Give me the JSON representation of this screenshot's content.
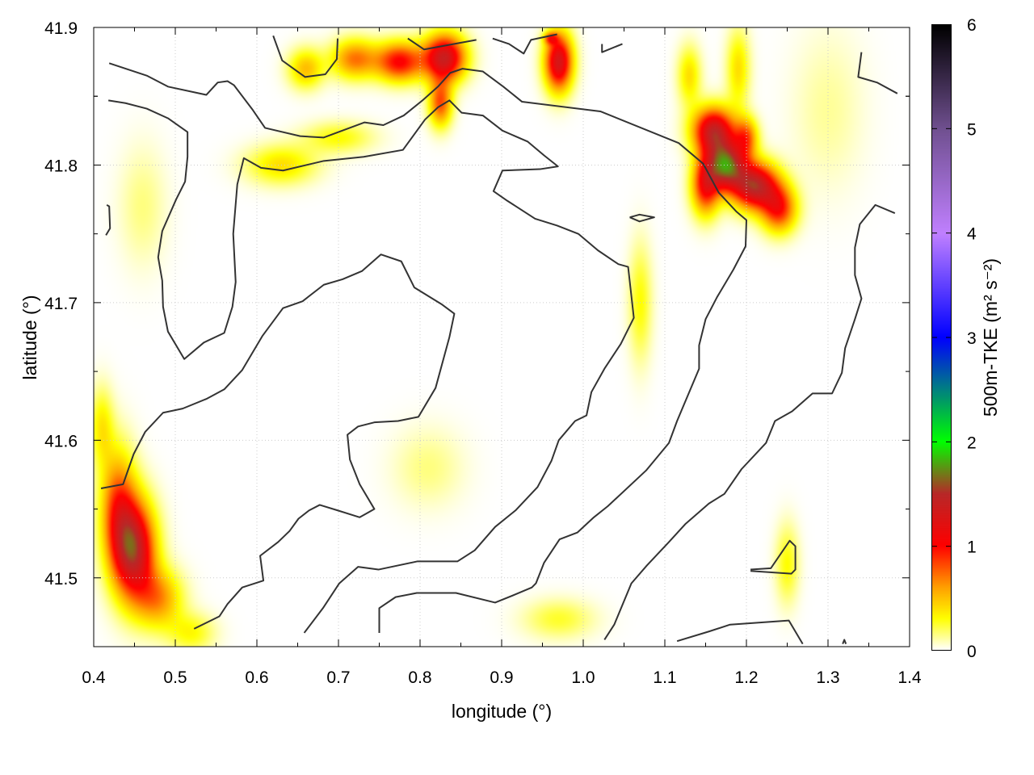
{
  "chart_data": {
    "type": "heatmap",
    "title": "",
    "xlabel": "longitude (°)",
    "ylabel": "latitude (°)",
    "xlim": [
      0.4,
      1.4
    ],
    "ylim": [
      41.45,
      41.9
    ],
    "xticks": [
      "0.4",
      "0.5",
      "0.6",
      "0.7",
      "0.8",
      "0.9",
      "1.0",
      "1.1",
      "1.2",
      "1.3",
      "1.4"
    ],
    "yticks": [
      "41.5",
      "41.6",
      "41.7",
      "41.8",
      "41.9"
    ],
    "grid": true,
    "colorbar": {
      "label": "500m-TKE (m² s⁻²)",
      "range": [
        0,
        6
      ],
      "ticks": [
        "0",
        "1",
        "2",
        "3",
        "4",
        "5",
        "6"
      ],
      "stops": [
        {
          "v": 0,
          "c": "#ffffff"
        },
        {
          "v": 0.3,
          "c": "#ffff00"
        },
        {
          "v": 0.6,
          "c": "#ffa000"
        },
        {
          "v": 1.0,
          "c": "#ff0000"
        },
        {
          "v": 1.5,
          "c": "#b82828"
        },
        {
          "v": 2.0,
          "c": "#00ff00"
        },
        {
          "v": 2.5,
          "c": "#008080"
        },
        {
          "v": 3.0,
          "c": "#0000ff"
        },
        {
          "v": 4.0,
          "c": "#c080ff"
        },
        {
          "v": 5.0,
          "c": "#705090"
        },
        {
          "v": 6.0,
          "c": "#000000"
        }
      ]
    },
    "tke_hotspots": [
      {
        "lon": 0.45,
        "lat": 41.52,
        "tke": 1.4,
        "slon": 0.018,
        "slat": 0.025
      },
      {
        "lon": 0.43,
        "lat": 41.55,
        "tke": 0.8,
        "slon": 0.015,
        "slat": 0.03
      },
      {
        "lon": 0.48,
        "lat": 41.485,
        "tke": 0.6,
        "slon": 0.02,
        "slat": 0.015
      },
      {
        "lon": 0.52,
        "lat": 41.46,
        "tke": 0.3,
        "slon": 0.02,
        "slat": 0.01
      },
      {
        "lon": 0.41,
        "lat": 41.61,
        "tke": 0.35,
        "slon": 0.01,
        "slat": 0.02
      },
      {
        "lon": 0.83,
        "lat": 41.878,
        "tke": 1.35,
        "slon": 0.018,
        "slat": 0.012
      },
      {
        "lon": 0.775,
        "lat": 41.875,
        "tke": 1.0,
        "slon": 0.02,
        "slat": 0.01
      },
      {
        "lon": 0.72,
        "lat": 41.877,
        "tke": 0.7,
        "slon": 0.02,
        "slat": 0.01
      },
      {
        "lon": 0.66,
        "lat": 41.87,
        "tke": 0.5,
        "slon": 0.015,
        "slat": 0.01
      },
      {
        "lon": 0.825,
        "lat": 41.845,
        "tke": 0.8,
        "slon": 0.01,
        "slat": 0.012
      },
      {
        "lon": 0.97,
        "lat": 41.875,
        "tke": 1.3,
        "slon": 0.012,
        "slat": 0.015
      },
      {
        "lon": 0.96,
        "lat": 41.892,
        "tke": 0.6,
        "slon": 0.006,
        "slat": 0.003
      },
      {
        "lon": 1.16,
        "lat": 41.825,
        "tke": 1.35,
        "slon": 0.018,
        "slat": 0.012
      },
      {
        "lon": 1.175,
        "lat": 41.8,
        "tke": 1.5,
        "slon": 0.016,
        "slat": 0.012
      },
      {
        "lon": 1.21,
        "lat": 41.785,
        "tke": 1.45,
        "slon": 0.02,
        "slat": 0.012
      },
      {
        "lon": 1.24,
        "lat": 41.768,
        "tke": 0.9,
        "slon": 0.015,
        "slat": 0.012
      },
      {
        "lon": 1.15,
        "lat": 41.785,
        "tke": 1.0,
        "slon": 0.012,
        "slat": 0.015
      },
      {
        "lon": 1.2,
        "lat": 41.82,
        "tke": 0.7,
        "slon": 0.01,
        "slat": 0.01
      },
      {
        "lon": 1.13,
        "lat": 41.865,
        "tke": 0.4,
        "slon": 0.01,
        "slat": 0.015
      },
      {
        "lon": 1.19,
        "lat": 41.87,
        "tke": 0.4,
        "slon": 0.01,
        "slat": 0.02
      },
      {
        "lon": 0.63,
        "lat": 41.8,
        "tke": 0.4,
        "slon": 0.03,
        "slat": 0.01
      },
      {
        "lon": 0.7,
        "lat": 41.82,
        "tke": 0.3,
        "slon": 0.03,
        "slat": 0.008
      },
      {
        "lon": 1.07,
        "lat": 41.7,
        "tke": 0.3,
        "slon": 0.01,
        "slat": 0.03
      },
      {
        "lon": 0.97,
        "lat": 41.47,
        "tke": 0.25,
        "slon": 0.03,
        "slat": 0.01
      },
      {
        "lon": 0.81,
        "lat": 41.58,
        "tke": 0.15,
        "slon": 0.03,
        "slat": 0.02
      },
      {
        "lon": 1.25,
        "lat": 41.51,
        "tke": 0.3,
        "slon": 0.01,
        "slat": 0.02
      },
      {
        "lon": 0.46,
        "lat": 41.77,
        "tke": 0.15,
        "slon": 0.02,
        "slat": 0.03
      },
      {
        "lon": 1.3,
        "lat": 41.84,
        "tke": 0.12,
        "slon": 0.03,
        "slat": 0.04
      }
    ],
    "contours": [
      [
        [
          0.419,
          41.874
        ],
        [
          0.465,
          41.865
        ],
        [
          0.491,
          41.857
        ],
        [
          0.538,
          41.851
        ],
        [
          0.552,
          41.86
        ],
        [
          0.564,
          41.861
        ],
        [
          0.572,
          41.858
        ],
        [
          0.595,
          41.84
        ],
        [
          0.61,
          41.827
        ],
        [
          0.653,
          41.821
        ],
        [
          0.682,
          41.82
        ],
        [
          0.732,
          41.831
        ],
        [
          0.755,
          41.829
        ],
        [
          0.78,
          41.836
        ],
        [
          0.803,
          41.847
        ],
        [
          0.822,
          41.857
        ],
        [
          0.837,
          41.867
        ],
        [
          0.852,
          41.87
        ],
        [
          0.877,
          41.868
        ],
        [
          0.902,
          41.857
        ],
        [
          0.925,
          41.846
        ],
        [
          1.021,
          41.839
        ],
        [
          1.117,
          41.816
        ],
        [
          1.147,
          41.801
        ],
        [
          1.166,
          41.78
        ],
        [
          1.188,
          41.766
        ],
        [
          1.2,
          41.76
        ],
        [
          1.199,
          41.741
        ],
        [
          1.184,
          41.724
        ],
        [
          1.164,
          41.704
        ],
        [
          1.15,
          41.688
        ],
        [
          1.142,
          41.669
        ],
        [
          1.142,
          41.652
        ],
        [
          1.115,
          41.614
        ],
        [
          1.105,
          41.598
        ],
        [
          1.077,
          41.578
        ],
        [
          1.03,
          41.552
        ],
        [
          1.013,
          41.544
        ],
        [
          0.993,
          41.533
        ],
        [
          0.971,
          41.528
        ],
        [
          0.952,
          41.511
        ],
        [
          0.942,
          41.496
        ],
        [
          0.937,
          41.493
        ],
        [
          0.917,
          41.488
        ],
        [
          0.892,
          41.482
        ],
        [
          0.844,
          41.489
        ],
        [
          0.796,
          41.489
        ],
        [
          0.77,
          41.486
        ],
        [
          0.75,
          41.478
        ],
        [
          0.75,
          41.46
        ]
      ],
      [
        [
          0.418,
          41.847
        ],
        [
          0.439,
          41.845
        ],
        [
          0.465,
          41.841
        ],
        [
          0.491,
          41.834
        ],
        [
          0.515,
          41.824
        ],
        [
          0.515,
          41.806
        ],
        [
          0.512,
          41.788
        ],
        [
          0.501,
          41.775
        ],
        [
          0.484,
          41.752
        ],
        [
          0.479,
          41.733
        ],
        [
          0.484,
          41.716
        ],
        [
          0.485,
          41.697
        ],
        [
          0.491,
          41.679
        ],
        [
          0.511,
          41.659
        ],
        [
          0.535,
          41.671
        ],
        [
          0.56,
          41.678
        ],
        [
          0.57,
          41.697
        ],
        [
          0.574,
          41.715
        ],
        [
          0.571,
          41.75
        ],
        [
          0.576,
          41.786
        ],
        [
          0.584,
          41.805
        ],
        [
          0.605,
          41.798
        ],
        [
          0.632,
          41.796
        ],
        [
          0.682,
          41.803
        ],
        [
          0.731,
          41.806
        ],
        [
          0.779,
          41.811
        ],
        [
          0.806,
          41.833
        ],
        [
          0.822,
          41.842
        ],
        [
          0.836,
          41.847
        ],
        [
          0.851,
          41.838
        ],
        [
          0.877,
          41.836
        ],
        [
          0.901,
          41.825
        ],
        [
          0.932,
          41.817
        ],
        [
          0.952,
          41.807
        ],
        [
          0.969,
          41.799
        ],
        [
          0.947,
          41.797
        ],
        [
          0.901,
          41.796
        ],
        [
          0.89,
          41.781
        ],
        [
          0.907,
          41.774
        ],
        [
          0.941,
          41.761
        ],
        [
          0.968,
          41.756
        ],
        [
          0.994,
          41.75
        ],
        [
          1.018,
          41.738
        ],
        [
          1.043,
          41.728
        ],
        [
          1.055,
          41.726
        ],
        [
          1.062,
          41.689
        ],
        [
          1.046,
          41.67
        ],
        [
          1.026,
          41.652
        ],
        [
          1.01,
          41.635
        ],
        [
          1.004,
          41.618
        ],
        [
          0.99,
          41.614
        ],
        [
          0.97,
          41.6
        ],
        [
          0.961,
          41.585
        ],
        [
          0.944,
          41.566
        ],
        [
          0.917,
          41.549
        ],
        [
          0.892,
          41.537
        ],
        [
          0.867,
          41.52
        ],
        [
          0.846,
          41.512
        ],
        [
          0.797,
          41.512
        ],
        [
          0.749,
          41.506
        ],
        [
          0.724,
          41.508
        ],
        [
          0.701,
          41.496
        ],
        [
          0.681,
          41.478
        ],
        [
          0.658,
          41.46
        ]
      ],
      [
        [
          0.409,
          41.565
        ],
        [
          0.436,
          41.568
        ],
        [
          0.449,
          41.59
        ],
        [
          0.463,
          41.606
        ],
        [
          0.485,
          41.62
        ],
        [
          0.509,
          41.623
        ],
        [
          0.538,
          41.63
        ],
        [
          0.56,
          41.637
        ],
        [
          0.582,
          41.651
        ],
        [
          0.607,
          41.676
        ],
        [
          0.632,
          41.696
        ],
        [
          0.656,
          41.701
        ],
        [
          0.682,
          41.713
        ],
        [
          0.705,
          41.717
        ],
        [
          0.729,
          41.723
        ],
        [
          0.752,
          41.735
        ],
        [
          0.777,
          41.73
        ],
        [
          0.793,
          41.711
        ],
        [
          0.826,
          41.699
        ],
        [
          0.842,
          41.692
        ],
        [
          0.836,
          41.675
        ],
        [
          0.819,
          41.638
        ],
        [
          0.798,
          41.617
        ],
        [
          0.773,
          41.614
        ],
        [
          0.744,
          41.613
        ],
        [
          0.724,
          41.61
        ],
        [
          0.711,
          41.604
        ],
        [
          0.714,
          41.586
        ],
        [
          0.726,
          41.568
        ],
        [
          0.744,
          41.55
        ],
        [
          0.726,
          41.544
        ],
        [
          0.699,
          41.549
        ],
        [
          0.677,
          41.553
        ],
        [
          0.664,
          41.549
        ],
        [
          0.651,
          41.543
        ],
        [
          0.64,
          41.534
        ],
        [
          0.626,
          41.526
        ],
        [
          0.604,
          41.516
        ],
        [
          0.608,
          41.498
        ],
        [
          0.582,
          41.493
        ],
        [
          0.564,
          41.481
        ],
        [
          0.554,
          41.472
        ],
        [
          0.523,
          41.463
        ]
      ],
      [
        [
          1.026,
          41.455
        ],
        [
          1.038,
          41.466
        ],
        [
          1.059,
          41.496
        ],
        [
          1.078,
          41.509
        ],
        [
          1.105,
          41.526
        ],
        [
          1.125,
          41.539
        ],
        [
          1.154,
          41.554
        ],
        [
          1.173,
          41.561
        ],
        [
          1.194,
          41.579
        ],
        [
          1.224,
          41.598
        ],
        [
          1.235,
          41.614
        ],
        [
          1.256,
          41.621
        ],
        [
          1.281,
          41.634
        ],
        [
          1.305,
          41.634
        ],
        [
          1.317,
          41.649
        ],
        [
          1.321,
          41.667
        ],
        [
          1.333,
          41.688
        ],
        [
          1.341,
          41.703
        ],
        [
          1.333,
          41.72
        ],
        [
          1.333,
          41.74
        ],
        [
          1.339,
          41.757
        ],
        [
          1.358,
          41.771
        ],
        [
          1.382,
          41.765
        ]
      ],
      [
        [
          1.115,
          41.454
        ],
        [
          1.154,
          41.461
        ],
        [
          1.18,
          41.466
        ],
        [
          1.252,
          41.469
        ],
        [
          1.269,
          41.452
        ]
      ],
      [
        [
          1.205,
          41.506
        ],
        [
          1.23,
          41.507
        ],
        [
          1.253,
          41.527
        ],
        [
          1.26,
          41.523
        ],
        [
          1.26,
          41.506
        ],
        [
          1.255,
          41.503
        ],
        [
          1.205,
          41.505
        ]
      ],
      [
        [
          0.62,
          41.894
        ],
        [
          0.631,
          41.876
        ],
        [
          0.659,
          41.864
        ],
        [
          0.684,
          41.866
        ],
        [
          0.698,
          41.877
        ],
        [
          0.699,
          41.892
        ]
      ],
      [
        [
          0.785,
          41.892
        ],
        [
          0.805,
          41.884
        ],
        [
          0.869,
          41.891
        ]
      ],
      [
        [
          0.889,
          41.892
        ],
        [
          0.909,
          41.888
        ],
        [
          0.927,
          41.881
        ],
        [
          0.936,
          41.891
        ],
        [
          0.968,
          41.895
        ]
      ],
      [
        [
          1.023,
          41.888
        ],
        [
          1.023,
          41.882
        ],
        [
          1.048,
          41.888
        ]
      ],
      [
        [
          1.341,
          41.882
        ],
        [
          1.337,
          41.864
        ],
        [
          1.36,
          41.86
        ],
        [
          1.385,
          41.852
        ]
      ],
      [
        [
          1.057,
          41.762
        ],
        [
          1.069,
          41.764
        ],
        [
          1.087,
          41.762
        ],
        [
          1.069,
          41.759
        ],
        [
          1.057,
          41.762
        ]
      ],
      [
        [
          0.416,
          41.771
        ],
        [
          0.419,
          41.77
        ],
        [
          0.42,
          41.754
        ],
        [
          0.415,
          41.749
        ]
      ],
      [
        [
          1.318,
          41.452
        ],
        [
          1.32,
          41.455
        ],
        [
          1.322,
          41.452
        ]
      ]
    ]
  }
}
